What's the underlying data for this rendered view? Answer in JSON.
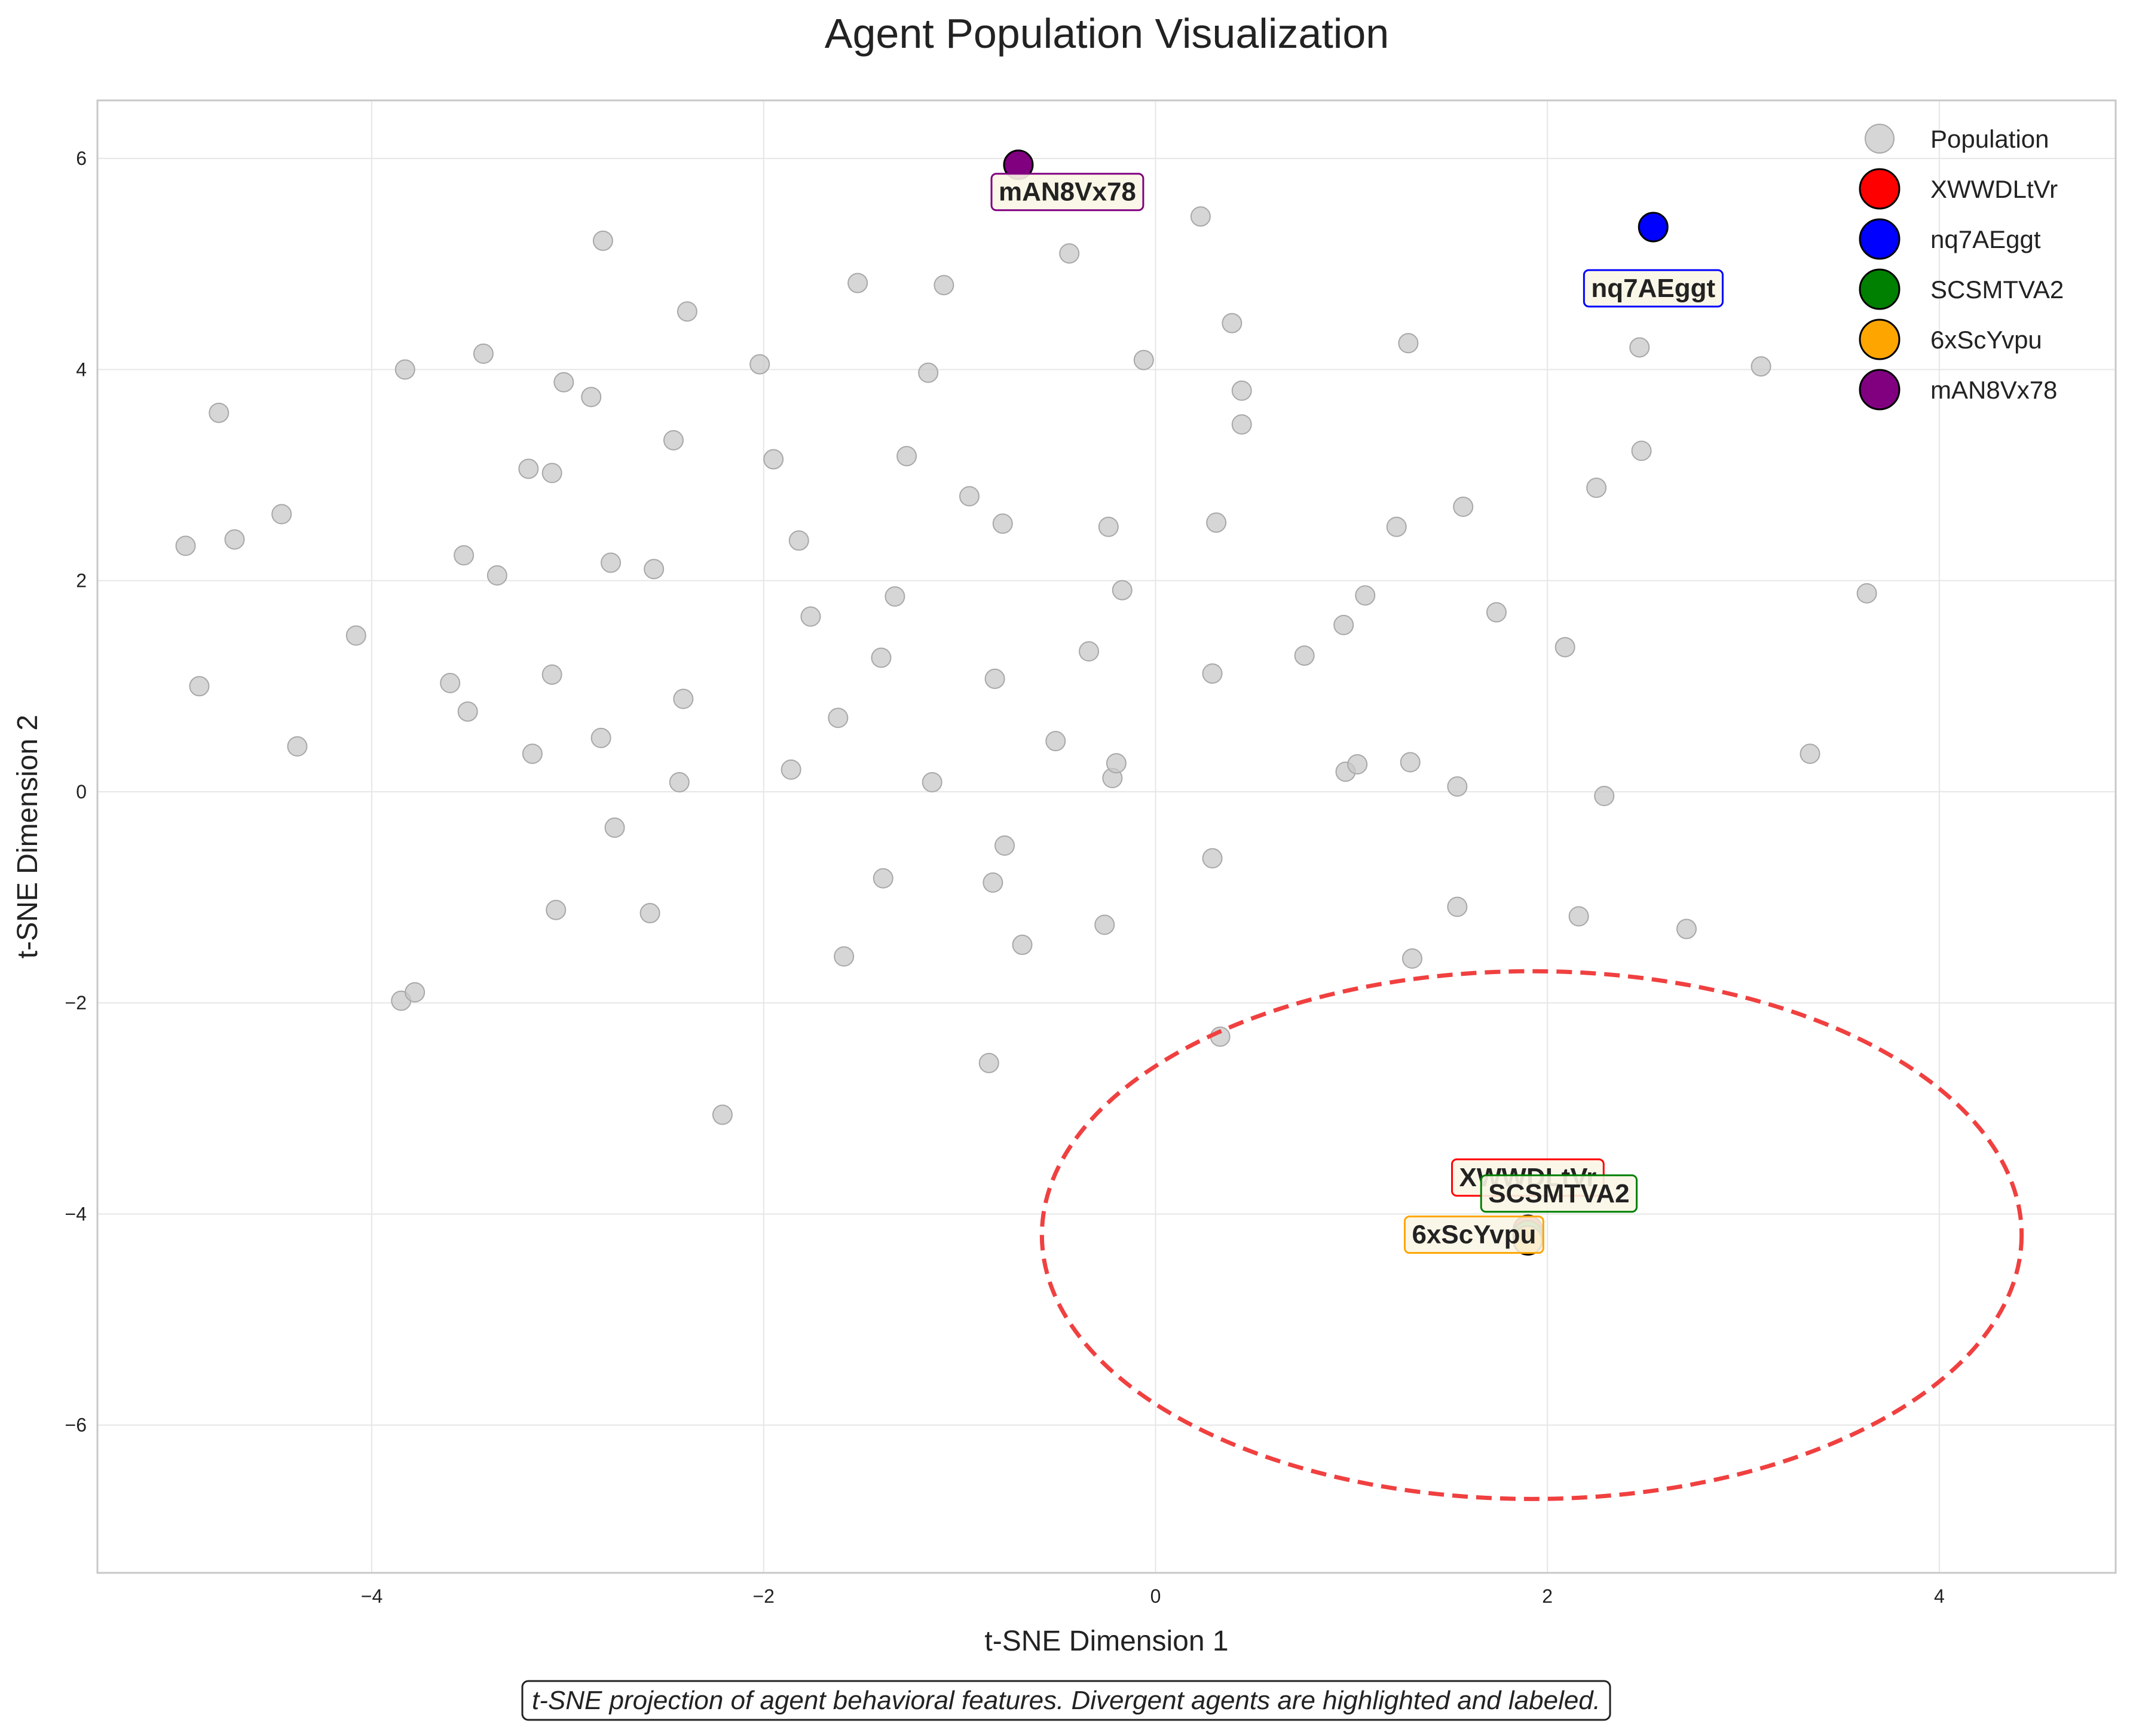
{
  "chart_data": {
    "type": "scatter",
    "title": "Agent Population Visualization",
    "xlabel": "t-SNE Dimension 1",
    "ylabel": "t-SNE Dimension 2",
    "xlim": [
      -5.4,
      4.9
    ],
    "ylim": [
      -7.4,
      6.55
    ],
    "x_ticks": [
      -4,
      -2,
      0,
      2,
      4
    ],
    "y_ticks": [
      -6,
      -4,
      -2,
      0,
      2,
      4,
      6
    ],
    "x_tick_labels": [
      "−4",
      "−2",
      "0",
      "2",
      "4"
    ],
    "y_tick_labels": [
      "−6",
      "−4",
      "−2",
      "0",
      "2",
      "4",
      "6"
    ],
    "grid": true,
    "legend_placement": "top-right",
    "caption": "t-SNE projection of agent behavioral features. Divergent agents are highlighted and labeled.",
    "series": [
      {
        "name": "Population",
        "color": "#c8c8c8",
        "points": [
          [
            -4.95,
            2.33
          ],
          [
            -4.88,
            1.0
          ],
          [
            -4.78,
            3.59
          ],
          [
            -4.7,
            2.39
          ],
          [
            -4.46,
            2.63
          ],
          [
            -4.38,
            0.43
          ],
          [
            -4.08,
            1.48
          ],
          [
            -3.83,
            4.0
          ],
          [
            -3.85,
            -1.98
          ],
          [
            -3.78,
            -1.9
          ],
          [
            -3.6,
            1.03
          ],
          [
            -3.53,
            2.24
          ],
          [
            -3.51,
            0.76
          ],
          [
            -3.43,
            4.15
          ],
          [
            -3.36,
            2.05
          ],
          [
            -3.2,
            3.06
          ],
          [
            -3.18,
            0.36
          ],
          [
            -3.08,
            3.02
          ],
          [
            -3.08,
            1.11
          ],
          [
            -3.06,
            -1.12
          ],
          [
            -3.02,
            3.88
          ],
          [
            -2.88,
            3.74
          ],
          [
            -2.83,
            0.51
          ],
          [
            -2.82,
            5.22
          ],
          [
            -2.78,
            2.17
          ],
          [
            -2.76,
            -0.34
          ],
          [
            -2.58,
            -1.15
          ],
          [
            -2.56,
            2.11
          ],
          [
            -2.46,
            3.33
          ],
          [
            -2.43,
            0.09
          ],
          [
            -2.41,
            0.88
          ],
          [
            -2.39,
            4.55
          ],
          [
            -2.21,
            -3.06
          ],
          [
            -2.02,
            4.05
          ],
          [
            -1.95,
            3.15
          ],
          [
            -1.86,
            0.21
          ],
          [
            -1.82,
            2.38
          ],
          [
            -1.76,
            1.66
          ],
          [
            -1.62,
            0.7
          ],
          [
            -1.59,
            -1.56
          ],
          [
            -1.52,
            4.82
          ],
          [
            -1.4,
            1.27
          ],
          [
            -1.39,
            -0.82
          ],
          [
            -1.33,
            1.85
          ],
          [
            -1.27,
            3.18
          ],
          [
            -1.16,
            3.97
          ],
          [
            -1.14,
            0.09
          ],
          [
            -1.08,
            4.8
          ],
          [
            -0.95,
            2.8
          ],
          [
            -0.85,
            -2.57
          ],
          [
            -0.83,
            -0.86
          ],
          [
            -0.82,
            1.07
          ],
          [
            -0.78,
            2.54
          ],
          [
            -0.77,
            -0.51
          ],
          [
            -0.68,
            -1.45
          ],
          [
            -0.51,
            0.48
          ],
          [
            -0.44,
            5.1
          ],
          [
            -0.34,
            1.33
          ],
          [
            -0.26,
            -1.26
          ],
          [
            -0.24,
            2.51
          ],
          [
            -0.22,
            0.13
          ],
          [
            -0.2,
            0.27
          ],
          [
            -0.17,
            1.91
          ],
          [
            -0.06,
            4.09
          ],
          [
            0.23,
            5.45
          ],
          [
            0.29,
            1.12
          ],
          [
            0.29,
            -0.63
          ],
          [
            0.31,
            2.55
          ],
          [
            0.33,
            -2.32
          ],
          [
            0.39,
            4.44
          ],
          [
            0.44,
            3.8
          ],
          [
            0.44,
            3.48
          ],
          [
            0.76,
            1.29
          ],
          [
            0.96,
            1.58
          ],
          [
            0.97,
            0.19
          ],
          [
            1.03,
            0.26
          ],
          [
            1.07,
            1.86
          ],
          [
            1.23,
            2.51
          ],
          [
            1.29,
            4.25
          ],
          [
            1.3,
            0.28
          ],
          [
            1.31,
            -1.58
          ],
          [
            1.54,
            0.05
          ],
          [
            1.54,
            -1.09
          ],
          [
            1.57,
            2.7
          ],
          [
            1.74,
            1.7
          ],
          [
            2.09,
            1.37
          ],
          [
            2.16,
            -1.18
          ],
          [
            2.25,
            2.88
          ],
          [
            2.29,
            -0.04
          ],
          [
            2.47,
            4.21
          ],
          [
            2.48,
            3.23
          ],
          [
            2.71,
            -1.3
          ],
          [
            3.09,
            4.03
          ],
          [
            3.34,
            0.36
          ],
          [
            3.63,
            1.88
          ],
          [
            1.9,
            -4.2
          ]
        ]
      },
      {
        "name": "XWWDLtVr",
        "color": "#ff0000",
        "x": 1.9,
        "y": -4.15,
        "label": "XWWDLtVr"
      },
      {
        "name": "nq7AEggt",
        "color": "#0000ff",
        "x": 2.54,
        "y": 5.35,
        "label": "nq7AEggt"
      },
      {
        "name": "SCSMTVA2",
        "color": "#008000",
        "x": 1.9,
        "y": -4.2,
        "label": "SCSMTVA2"
      },
      {
        "name": "6xScYvpu",
        "color": "#ffa500",
        "x": 1.9,
        "y": -4.25,
        "label": "6xScYvpu"
      },
      {
        "name": "mAN8Vx78",
        "color": "#800080",
        "x": -0.7,
        "y": 5.94,
        "label": "mAN8Vx78"
      }
    ],
    "cluster_ellipse": {
      "cx": 1.92,
      "cy": -4.2,
      "rx": 2.5,
      "ry": 2.5,
      "color": "#f04040",
      "style": "dashed"
    }
  }
}
